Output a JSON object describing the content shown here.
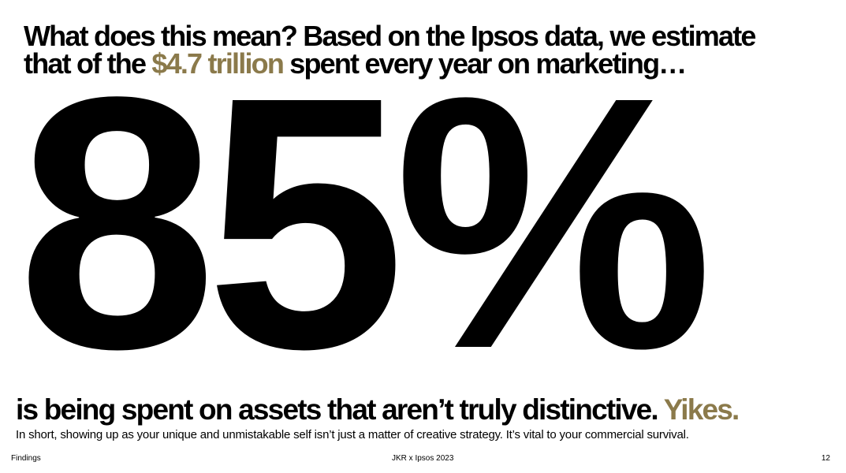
{
  "heading": {
    "line1": "What does this mean? Based on the Ipsos data, we estimate",
    "line2_start": "that of the",
    "highlight": "$4.7 trillion",
    "line2_end": "spent every year on marketing…"
  },
  "big_number": "85%",
  "statement": {
    "text": "is being spent on assets that aren’t truly distinctive.",
    "highlight": "Yikes."
  },
  "body": "In short, showing up as your unique and unmistakable self isn’t just a matter of creative strategy. It’s vital to your commercial survival.",
  "footer": {
    "left": "Findings",
    "center": "JKR x Ipsos 2023",
    "page": "12"
  }
}
